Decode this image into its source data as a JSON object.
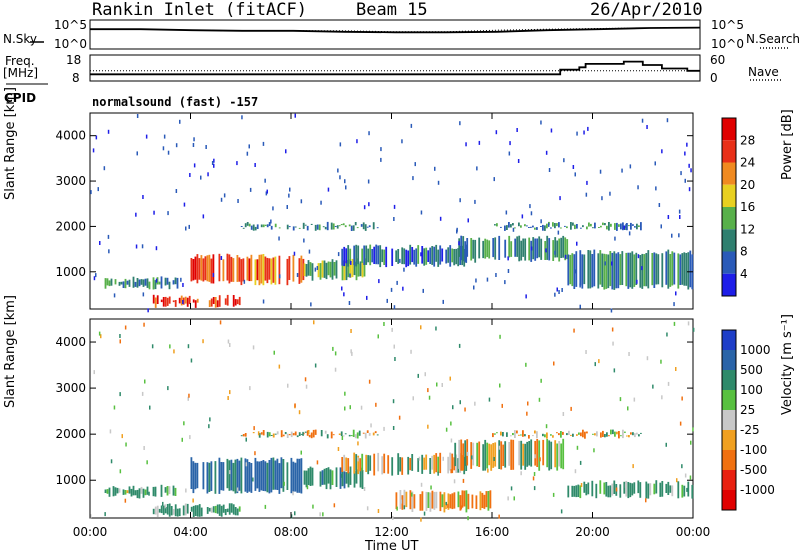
{
  "header": {
    "station": "Rankin Inlet (fitACF)",
    "beam": "Beam 15",
    "date": "26/Apr/2010"
  },
  "side_labels": {
    "nsky": "N.Sky",
    "nsearch": "N.Search",
    "freq_line1": "Freq.",
    "freq_line2": "[MHz]",
    "nave": "Nave",
    "cpid": "CPID",
    "cpid_value": "normalsound (fast) -157"
  },
  "noise_panel": {
    "left_ticks": [
      "10^5",
      "10^0"
    ],
    "right_ticks": [
      "10^5",
      "10^0"
    ]
  },
  "freq_panel": {
    "left_ticks": [
      "18",
      "8"
    ],
    "right_ticks": [
      "60",
      "0"
    ]
  },
  "power_panel": {
    "ylabel": "Slant Range [km]",
    "yticks": [
      "4000",
      "3000",
      "2000",
      "1000"
    ],
    "colorbar_label": "Power [dB]",
    "colorbar_ticks": [
      "28",
      "24",
      "20",
      "16",
      "12",
      "8",
      "4"
    ],
    "colors": [
      "#1e1ee8",
      "#2a5ab8",
      "#2f7f6f",
      "#58b04a",
      "#e8d020",
      "#f08a20",
      "#e83018",
      "#e00000"
    ]
  },
  "velocity_panel": {
    "ylabel": "Slant Range [km]",
    "yticks": [
      "4000",
      "3000",
      "2000",
      "1000"
    ],
    "colorbar_label": "Velocity [m s⁻¹]",
    "colorbar_ticks": [
      "1000",
      "500",
      "100",
      "25",
      "-25",
      "-100",
      "-500",
      "-1000"
    ],
    "colors": [
      "#1e3ec8",
      "#2a64a8",
      "#2f8a6a",
      "#58c040",
      "#c8c8c8",
      "#f0a020",
      "#f07010",
      "#e82010",
      "#e00000"
    ]
  },
  "x_axis": {
    "label": "Time UT",
    "ticks": [
      "00:00",
      "04:00",
      "08:00",
      "12:00",
      "16:00",
      "20:00",
      "00:00"
    ]
  },
  "chart_data": [
    {
      "type": "line",
      "title": "Rankin Inlet (fitACF)",
      "series": [
        {
          "name": "N.Sky",
          "x": [
            "00:00",
            "02:00",
            "04:00",
            "06:00",
            "08:00",
            "10:00",
            "12:00",
            "14:00",
            "16:00",
            "18:00",
            "20:00",
            "22:00",
            "24:00"
          ],
          "values": [
            3000,
            3000,
            2000,
            1500,
            1500,
            1000,
            800,
            800,
            1000,
            2000,
            3000,
            5000,
            6000
          ]
        },
        {
          "name": "N.Search",
          "x": [
            "00:00",
            "02:00",
            "04:00",
            "06:00",
            "08:00",
            "10:00",
            "12:00",
            "14:00",
            "16:00",
            "18:00",
            "20:00",
            "22:00",
            "24:00"
          ],
          "values": [
            3000,
            3000,
            2000,
            1500,
            1500,
            1500,
            1000,
            1000,
            2000,
            3000,
            4000,
            5000,
            6000
          ]
        }
      ],
      "yscale": "log",
      "ylim": [
        1,
        100000
      ]
    },
    {
      "type": "line",
      "series": [
        {
          "name": "Freq.",
          "x": [
            "00:00",
            "10:00",
            "18:00",
            "18:30",
            "19:15",
            "19:30",
            "21:00",
            "21:45",
            "22:30",
            "23:30",
            "24:00"
          ],
          "values": [
            10.5,
            10.5,
            10.5,
            12.5,
            13.5,
            15,
            16,
            14.5,
            13,
            12,
            12
          ]
        },
        {
          "name": "Nave",
          "x": [
            "00:00",
            "12:00",
            "24:00"
          ],
          "values": [
            24,
            24,
            24
          ]
        }
      ],
      "ylim_left": [
        8,
        18
      ],
      "ylim_right": [
        0,
        60
      ]
    },
    {
      "type": "heatmap",
      "title": "Power [dB]",
      "xlabel": "Time UT",
      "ylabel": "Slant Range [km]",
      "xlim": [
        "00:00",
        "24:00"
      ],
      "ylim": [
        180,
        4500
      ],
      "colorbar": [
        4,
        8,
        12,
        16,
        20,
        24,
        28
      ],
      "regions": [
        {
          "t_start": 0.5,
          "t_end": 3.5,
          "range_start": 600,
          "range_end": 900,
          "power": 12
        },
        {
          "t_start": 2.5,
          "t_end": 6.0,
          "range_start": 200,
          "range_end": 500,
          "power": 28
        },
        {
          "t_start": 4.0,
          "t_end": 8.5,
          "range_start": 700,
          "range_end": 1400,
          "power": 26
        },
        {
          "t_start": 8.5,
          "t_end": 11.0,
          "range_start": 800,
          "range_end": 1300,
          "power": 16
        },
        {
          "t_start": 6.0,
          "t_end": 11.5,
          "range_start": 1900,
          "range_end": 2100,
          "power": 12
        },
        {
          "t_start": 10.0,
          "t_end": 15.0,
          "range_start": 1100,
          "range_end": 1600,
          "power": 10
        },
        {
          "t_start": 14.5,
          "t_end": 19.0,
          "range_start": 1200,
          "range_end": 1800,
          "power": 12
        },
        {
          "t_start": 16.0,
          "t_end": 22.0,
          "range_start": 1900,
          "range_end": 2100,
          "power": 12
        },
        {
          "t_start": 19.0,
          "t_end": 24.0,
          "range_start": 600,
          "range_end": 1500,
          "power": 12
        }
      ]
    },
    {
      "type": "heatmap",
      "title": "Velocity [m s-1]",
      "xlabel": "Time UT",
      "ylabel": "Slant Range [km]",
      "xlim": [
        "00:00",
        "24:00"
      ],
      "ylim": [
        180,
        4500
      ],
      "colorbar": [
        -1000,
        -500,
        -100,
        -25,
        25,
        100,
        500,
        1000
      ],
      "regions": [
        {
          "t_start": 0.5,
          "t_end": 3.5,
          "range_start": 600,
          "range_end": 900,
          "velocity": 100
        },
        {
          "t_start": 2.5,
          "t_end": 6.0,
          "range_start": 200,
          "range_end": 500,
          "velocity": 150
        },
        {
          "t_start": 4.0,
          "t_end": 8.5,
          "range_start": 700,
          "range_end": 1500,
          "velocity": 400
        },
        {
          "t_start": 8.5,
          "t_end": 11.0,
          "range_start": 800,
          "range_end": 1300,
          "velocity": 200
        },
        {
          "t_start": 6.0,
          "t_end": 11.5,
          "range_start": 1900,
          "range_end": 2100,
          "velocity": 0
        },
        {
          "t_start": 10.0,
          "t_end": 15.0,
          "range_start": 1100,
          "range_end": 1600,
          "velocity": 0
        },
        {
          "t_start": 12.0,
          "t_end": 16.0,
          "range_start": 300,
          "range_end": 800,
          "velocity": -100
        },
        {
          "t_start": 14.5,
          "t_end": 19.0,
          "range_start": 1200,
          "range_end": 1900,
          "velocity": 0
        },
        {
          "t_start": 16.0,
          "t_end": 22.0,
          "range_start": 1900,
          "range_end": 2100,
          "velocity": 0
        },
        {
          "t_start": 19.0,
          "t_end": 24.0,
          "range_start": 600,
          "range_end": 1000,
          "velocity": 150
        }
      ]
    }
  ]
}
